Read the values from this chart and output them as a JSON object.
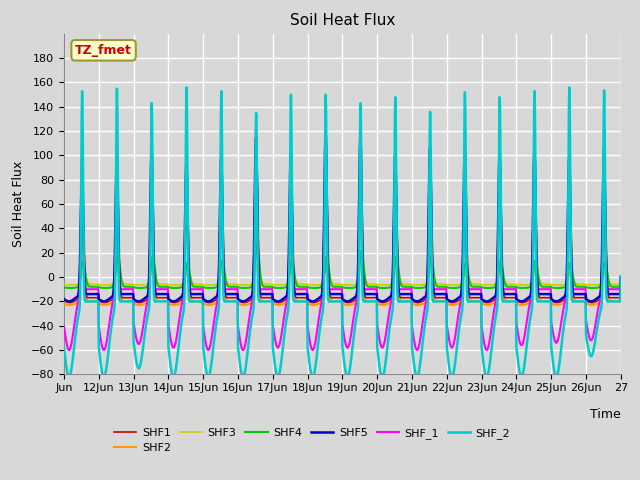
{
  "title": "Soil Heat Flux",
  "xlabel": "Time",
  "ylabel": "Soil Heat Flux",
  "ylim": [
    -80,
    200
  ],
  "yticks": [
    -80,
    -60,
    -40,
    -20,
    0,
    20,
    40,
    60,
    80,
    100,
    120,
    140,
    160,
    180
  ],
  "background_color": "#d8d8d8",
  "plot_bg_color": "#d8d8d8",
  "annotation_text": "TZ_fmet",
  "annotation_bg": "#ffffcc",
  "annotation_border": "#999933",
  "annotation_fc": "#cc0000",
  "series_order": [
    "SHF1",
    "SHF2",
    "SHF3",
    "SHF4",
    "SHF5",
    "SHF_1",
    "SHF_2"
  ],
  "series": {
    "SHF1": {
      "color": "#cc0000",
      "lw": 1.2,
      "zorder": 4
    },
    "SHF2": {
      "color": "#ff9900",
      "lw": 1.5,
      "zorder": 3
    },
    "SHF3": {
      "color": "#cccc00",
      "lw": 1.2,
      "zorder": 3
    },
    "SHF4": {
      "color": "#00cc00",
      "lw": 1.5,
      "zorder": 3
    },
    "SHF5": {
      "color": "#0000cc",
      "lw": 1.8,
      "zorder": 5
    },
    "SHF_1": {
      "color": "#ff00ff",
      "lw": 1.5,
      "zorder": 4
    },
    "SHF_2": {
      "color": "#00cccc",
      "lw": 1.8,
      "zorder": 6
    }
  },
  "legend_ncol": 6,
  "legend_labels_row1": [
    "SHF1",
    "SHF2",
    "SHF3",
    "SHF4",
    "SHF5",
    "SHF_1"
  ],
  "legend_labels_row2": [
    "SHF_2"
  ]
}
